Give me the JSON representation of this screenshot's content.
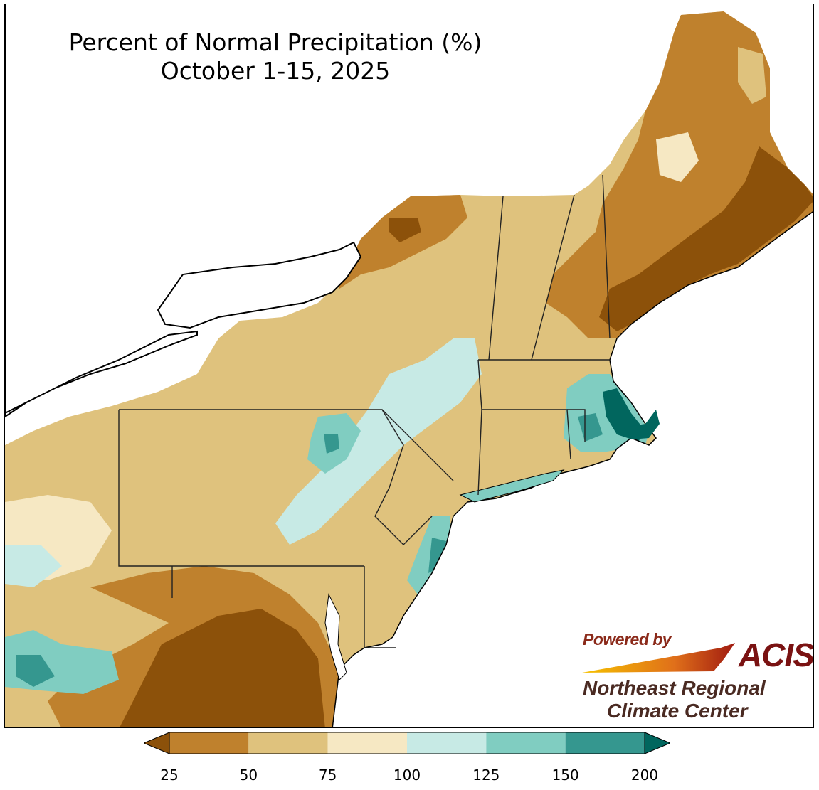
{
  "title": {
    "line1": "Percent of Normal Precipitation (%)",
    "line2": "October 1-15, 2025"
  },
  "logo": {
    "powered_by": "Powered by",
    "acis": "ACIS",
    "org_line1": "Northeast Regional",
    "org_line2": "Climate Center"
  },
  "legend": {
    "ticks": [
      "25",
      "50",
      "75",
      "100",
      "125",
      "150",
      "200"
    ],
    "bins": [
      {
        "range": "<25",
        "color": "#8c510a"
      },
      {
        "range": "25-50",
        "color": "#bf812d"
      },
      {
        "range": "50-75",
        "color": "#dfc27d"
      },
      {
        "range": "75-100",
        "color": "#f6e8c3"
      },
      {
        "range": "100-125",
        "color": "#c7eae5"
      },
      {
        "range": "125-150",
        "color": "#80cdc1"
      },
      {
        "range": "150-200",
        "color": "#35978f"
      },
      {
        "range": ">200",
        "color": "#01665e"
      }
    ]
  },
  "colors": {
    "water": "#ffffff",
    "border": "#000000"
  }
}
